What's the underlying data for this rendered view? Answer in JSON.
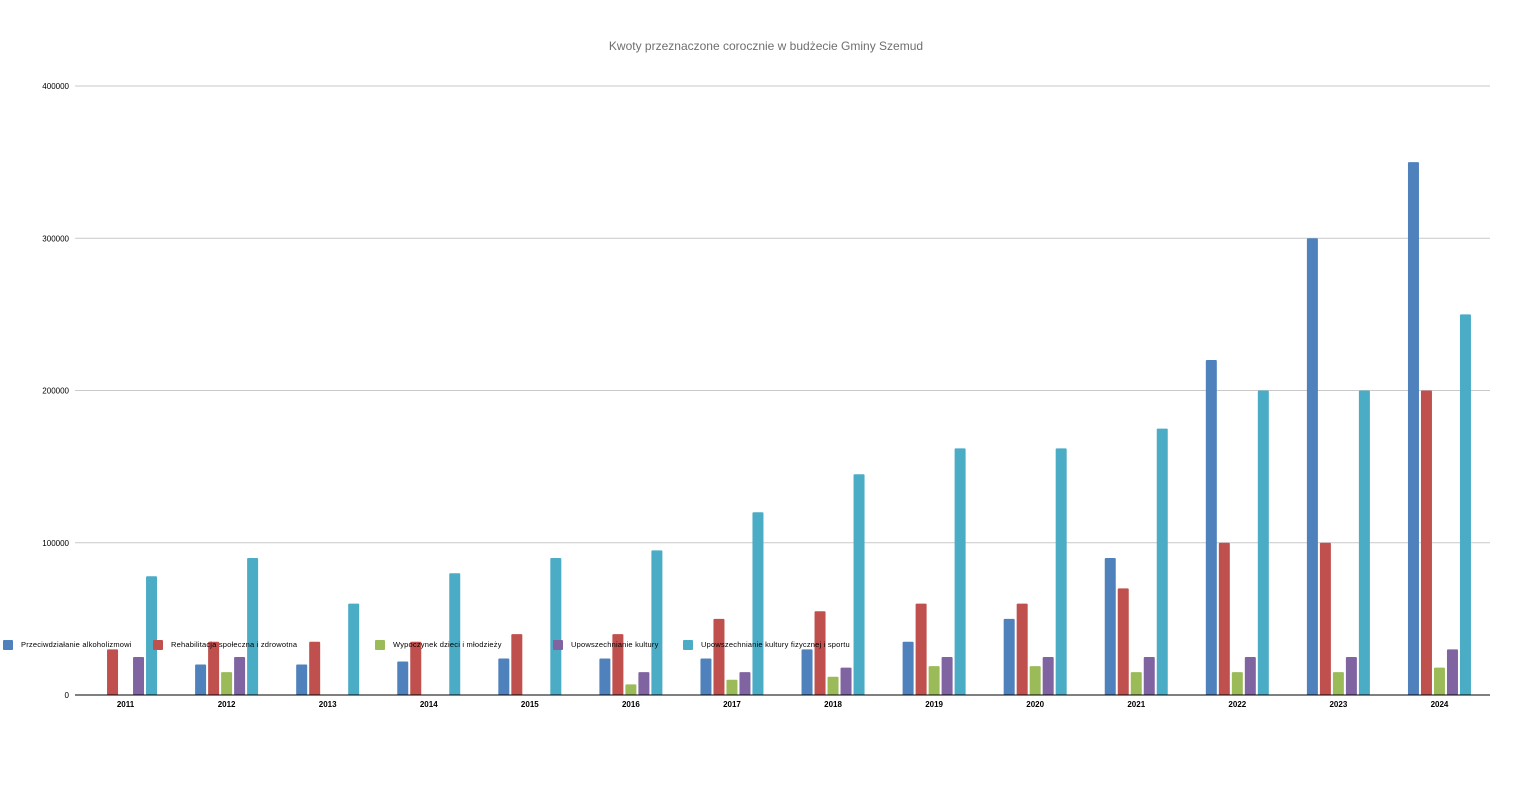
{
  "chart_data": {
    "type": "bar",
    "title": "Kwoty przeznaczone corocznie w budżecie Gminy Szemud",
    "categories": [
      "2011",
      "2012",
      "2013",
      "2014",
      "2015",
      "2016",
      "2017",
      "2018",
      "2019",
      "2020",
      "2021",
      "2022",
      "2023",
      "2024"
    ],
    "ylim": [
      0,
      400000
    ],
    "yticks": [
      "0",
      "100000",
      "200000",
      "300000",
      "400000"
    ],
    "grid": true,
    "legend_position": "left, mid-plot",
    "series": [
      {
        "name": "Przeciwdziałanie alkoholizmowi",
        "color": "#4f81bd",
        "values": [
          0,
          20000,
          20000,
          22000,
          24000,
          24000,
          24000,
          30000,
          35000,
          50000,
          90000,
          220000,
          300000,
          350000
        ]
      },
      {
        "name": "Rehabilitacja społeczna i zdrowotna",
        "color": "#c0504d",
        "values": [
          30000,
          35000,
          35000,
          35000,
          40000,
          40000,
          50000,
          55000,
          60000,
          60000,
          70000,
          100000,
          100000,
          200000
        ]
      },
      {
        "name": "Wypoczynek dzieci i młodzieży",
        "color": "#9bbb59",
        "values": [
          0,
          15000,
          0,
          0,
          0,
          7000,
          10000,
          12000,
          19000,
          19000,
          15000,
          15000,
          15000,
          18000
        ]
      },
      {
        "name": "Upowszechnianie kultury",
        "color": "#8064a2",
        "values": [
          25000,
          25000,
          0,
          0,
          0,
          15000,
          15000,
          18000,
          25000,
          25000,
          25000,
          25000,
          25000,
          30000
        ]
      },
      {
        "name": "Upowszechnianie kultury fizycznej i sportu",
        "color": "#4bacc6",
        "values": [
          78000,
          90000,
          60000,
          80000,
          90000,
          95000,
          120000,
          145000,
          162000,
          162000,
          175000,
          200000,
          200000,
          250000
        ]
      }
    ]
  }
}
